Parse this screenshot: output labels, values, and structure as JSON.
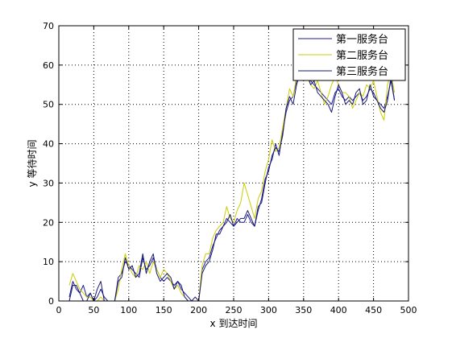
{
  "chart_data": {
    "type": "line",
    "xlabel": "x 到达时间",
    "ylabel": "y 等待时间",
    "xlim": [
      0,
      500
    ],
    "ylim": [
      0,
      70
    ],
    "xticks": [
      0,
      50,
      100,
      150,
      200,
      250,
      300,
      350,
      400,
      450,
      500
    ],
    "yticks": [
      0,
      10,
      20,
      30,
      40,
      50,
      60,
      70
    ],
    "grid": true,
    "legend_position": "top-right",
    "x": [
      15,
      20,
      25,
      30,
      35,
      40,
      45,
      50,
      55,
      60,
      65,
      70,
      75,
      80,
      85,
      90,
      95,
      100,
      105,
      110,
      115,
      120,
      125,
      130,
      135,
      140,
      145,
      150,
      155,
      160,
      165,
      170,
      175,
      180,
      185,
      190,
      195,
      200,
      205,
      210,
      215,
      220,
      225,
      230,
      235,
      240,
      245,
      250,
      255,
      260,
      265,
      270,
      275,
      280,
      285,
      290,
      295,
      300,
      305,
      310,
      315,
      320,
      325,
      330,
      335,
      340,
      345,
      350,
      355,
      360,
      365,
      370,
      375,
      380,
      385,
      390,
      395,
      400,
      405,
      410,
      415,
      420,
      425,
      430,
      435,
      440,
      445,
      450,
      455,
      460,
      465,
      470,
      475,
      480
    ],
    "series": [
      {
        "name": "第一服务台",
        "color": "#1a1a99",
        "values": [
          1,
          5,
          3,
          2,
          4,
          1,
          2,
          0,
          1,
          3,
          1,
          0,
          0,
          0,
          6,
          7,
          10,
          9,
          8,
          7,
          6,
          11,
          8,
          9,
          11,
          8,
          6,
          5,
          6,
          5,
          4,
          5,
          3,
          2,
          1,
          0,
          0,
          0,
          8,
          10,
          11,
          14,
          16,
          18,
          19,
          21,
          20,
          19,
          21,
          20,
          20,
          22,
          20,
          19,
          24,
          25,
          30,
          34,
          36,
          40,
          37,
          43,
          48,
          51,
          52,
          56,
          57,
          58,
          57,
          56,
          55,
          54,
          53,
          52,
          51,
          50,
          53,
          54,
          52,
          51,
          52,
          51,
          52,
          53,
          51,
          52,
          54,
          53,
          51,
          50,
          49,
          52,
          56,
          51
        ]
      },
      {
        "name": "第二服务台",
        "color": "#cccc00",
        "values": [
          4,
          7,
          5,
          3,
          2,
          1,
          1,
          0,
          0,
          1,
          0,
          0,
          0,
          0,
          3,
          8,
          12,
          9,
          7,
          6,
          9,
          8,
          10,
          7,
          10,
          8,
          6,
          8,
          7,
          5,
          3,
          4,
          2,
          1,
          0,
          0,
          0,
          0,
          9,
          12,
          12,
          16,
          18,
          19,
          20,
          24,
          21,
          20,
          23,
          25,
          30,
          27,
          24,
          21,
          26,
          28,
          33,
          36,
          41,
          38,
          39,
          44,
          49,
          54,
          52,
          57,
          60,
          59,
          57,
          55,
          54,
          56,
          53,
          50,
          52,
          55,
          57,
          55,
          53,
          53,
          52,
          49,
          51,
          53,
          52,
          55,
          54,
          56,
          52,
          48,
          46,
          55,
          58,
          53
        ]
      },
      {
        "name": "第三服务台",
        "color": "#191970",
        "values": [
          0,
          4,
          4,
          2,
          0,
          0,
          2,
          0,
          3,
          5,
          0,
          0,
          0,
          0,
          5,
          6,
          11,
          8,
          9,
          6,
          7,
          12,
          7,
          10,
          12,
          7,
          5,
          6,
          7,
          6,
          3,
          5,
          4,
          1,
          0,
          0,
          1,
          0,
          7,
          9,
          10,
          13,
          17,
          17,
          19,
          20,
          22,
          19,
          20,
          21,
          21,
          23,
          21,
          19,
          23,
          26,
          31,
          33,
          37,
          39,
          38,
          42,
          49,
          52,
          50,
          55,
          58,
          57,
          58,
          55,
          56,
          53,
          52,
          51,
          50,
          48,
          52,
          55,
          53,
          50,
          51,
          50,
          53,
          54,
          50,
          51,
          55,
          52,
          51,
          49,
          48,
          51,
          57,
          51
        ]
      }
    ]
  }
}
